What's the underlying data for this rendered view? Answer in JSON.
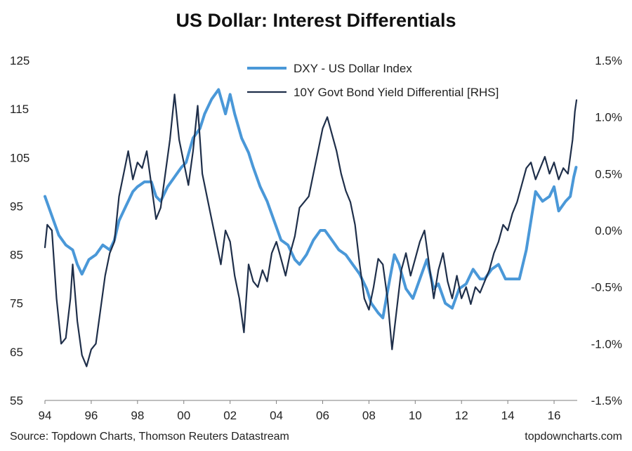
{
  "chart_data": {
    "type": "line",
    "title": "US Dollar: Interest Differentials",
    "left_axis": {
      "ylim": [
        55,
        125
      ],
      "ticks": [
        "55",
        "65",
        "75",
        "85",
        "95",
        "105",
        "115",
        "125"
      ]
    },
    "right_axis": {
      "ylim": [
        -1.5,
        1.5
      ],
      "ticks": [
        "-1.5%",
        "-1.0%",
        "-0.5%",
        "0.0%",
        "0.5%",
        "1.0%",
        "1.5%"
      ]
    },
    "x_axis": {
      "xlim": [
        1994,
        2017
      ],
      "tick_values": [
        1994,
        1996,
        1998,
        2000,
        2002,
        2004,
        2006,
        2008,
        2010,
        2012,
        2014,
        2016
      ],
      "ticks": [
        "94",
        "96",
        "98",
        "00",
        "02",
        "04",
        "06",
        "08",
        "10",
        "12",
        "14",
        "16"
      ]
    },
    "grid": false,
    "legend_position": "top-center",
    "series": [
      {
        "name": "DXY - US Dollar Index",
        "axis": "left",
        "color": "#4a98d8",
        "points": [
          [
            1994.0,
            97
          ],
          [
            1994.3,
            93
          ],
          [
            1994.6,
            89
          ],
          [
            1994.9,
            87
          ],
          [
            1995.2,
            86
          ],
          [
            1995.4,
            83
          ],
          [
            1995.6,
            81
          ],
          [
            1995.9,
            84
          ],
          [
            1996.2,
            85
          ],
          [
            1996.5,
            87
          ],
          [
            1996.8,
            86
          ],
          [
            1997.0,
            88
          ],
          [
            1997.2,
            92
          ],
          [
            1997.5,
            95
          ],
          [
            1997.8,
            98
          ],
          [
            1998.0,
            99
          ],
          [
            1998.3,
            100
          ],
          [
            1998.6,
            100
          ],
          [
            1998.8,
            97
          ],
          [
            1999.0,
            96
          ],
          [
            1999.3,
            99
          ],
          [
            1999.6,
            101
          ],
          [
            1999.9,
            103
          ],
          [
            2000.1,
            104
          ],
          [
            2000.4,
            109
          ],
          [
            2000.7,
            111
          ],
          [
            2000.9,
            114
          ],
          [
            2001.2,
            117
          ],
          [
            2001.5,
            119
          ],
          [
            2001.8,
            114
          ],
          [
            2002.0,
            118
          ],
          [
            2002.2,
            114
          ],
          [
            2002.5,
            109
          ],
          [
            2002.8,
            106
          ],
          [
            2003.0,
            103
          ],
          [
            2003.3,
            99
          ],
          [
            2003.6,
            96
          ],
          [
            2003.9,
            92
          ],
          [
            2004.2,
            88
          ],
          [
            2004.5,
            87
          ],
          [
            2004.8,
            84
          ],
          [
            2005.0,
            83
          ],
          [
            2005.3,
            85
          ],
          [
            2005.6,
            88
          ],
          [
            2005.9,
            90
          ],
          [
            2006.1,
            90
          ],
          [
            2006.4,
            88
          ],
          [
            2006.7,
            86
          ],
          [
            2007.0,
            85
          ],
          [
            2007.3,
            83
          ],
          [
            2007.6,
            81
          ],
          [
            2007.9,
            78
          ],
          [
            2008.1,
            75
          ],
          [
            2008.4,
            73
          ],
          [
            2008.6,
            72
          ],
          [
            2008.9,
            80
          ],
          [
            2009.1,
            85
          ],
          [
            2009.3,
            83
          ],
          [
            2009.6,
            78
          ],
          [
            2009.9,
            76
          ],
          [
            2010.2,
            80
          ],
          [
            2010.5,
            84
          ],
          [
            2010.8,
            78
          ],
          [
            2011.0,
            79
          ],
          [
            2011.3,
            75
          ],
          [
            2011.6,
            74
          ],
          [
            2011.9,
            78
          ],
          [
            2012.2,
            79
          ],
          [
            2012.5,
            82
          ],
          [
            2012.8,
            80
          ],
          [
            2013.0,
            80
          ],
          [
            2013.3,
            82
          ],
          [
            2013.6,
            83
          ],
          [
            2013.9,
            80
          ],
          [
            2014.2,
            80
          ],
          [
            2014.5,
            80
          ],
          [
            2014.8,
            86
          ],
          [
            2015.0,
            92
          ],
          [
            2015.2,
            98
          ],
          [
            2015.5,
            96
          ],
          [
            2015.8,
            97
          ],
          [
            2016.0,
            99
          ],
          [
            2016.2,
            94
          ],
          [
            2016.5,
            96
          ],
          [
            2016.7,
            97
          ],
          [
            2016.85,
            101
          ],
          [
            2016.95,
            103
          ]
        ]
      },
      {
        "name": "10Y Govt Bond Yield Differential [RHS]",
        "axis": "right",
        "color": "#1f2f4a",
        "points": [
          [
            1994.0,
            -0.15
          ],
          [
            1994.1,
            0.05
          ],
          [
            1994.3,
            0.0
          ],
          [
            1994.5,
            -0.6
          ],
          [
            1994.7,
            -1.0
          ],
          [
            1994.9,
            -0.95
          ],
          [
            1995.1,
            -0.6
          ],
          [
            1995.2,
            -0.3
          ],
          [
            1995.4,
            -0.8
          ],
          [
            1995.6,
            -1.1
          ],
          [
            1995.8,
            -1.2
          ],
          [
            1996.0,
            -1.05
          ],
          [
            1996.2,
            -1.0
          ],
          [
            1996.4,
            -0.7
          ],
          [
            1996.6,
            -0.4
          ],
          [
            1996.8,
            -0.2
          ],
          [
            1997.0,
            -0.1
          ],
          [
            1997.2,
            0.3
          ],
          [
            1997.4,
            0.5
          ],
          [
            1997.6,
            0.7
          ],
          [
            1997.8,
            0.45
          ],
          [
            1998.0,
            0.6
          ],
          [
            1998.2,
            0.55
          ],
          [
            1998.4,
            0.7
          ],
          [
            1998.6,
            0.4
          ],
          [
            1998.8,
            0.1
          ],
          [
            1999.0,
            0.2
          ],
          [
            1999.2,
            0.5
          ],
          [
            1999.4,
            0.8
          ],
          [
            1999.6,
            1.2
          ],
          [
            1999.8,
            0.8
          ],
          [
            2000.0,
            0.6
          ],
          [
            2000.2,
            0.4
          ],
          [
            2000.4,
            0.7
          ],
          [
            2000.6,
            1.1
          ],
          [
            2000.8,
            0.5
          ],
          [
            2001.0,
            0.3
          ],
          [
            2001.2,
            0.1
          ],
          [
            2001.4,
            -0.1
          ],
          [
            2001.6,
            -0.3
          ],
          [
            2001.8,
            0.0
          ],
          [
            2002.0,
            -0.1
          ],
          [
            2002.2,
            -0.4
          ],
          [
            2002.4,
            -0.6
          ],
          [
            2002.6,
            -0.9
          ],
          [
            2002.8,
            -0.3
          ],
          [
            2003.0,
            -0.45
          ],
          [
            2003.2,
            -0.5
          ],
          [
            2003.4,
            -0.35
          ],
          [
            2003.6,
            -0.45
          ],
          [
            2003.8,
            -0.2
          ],
          [
            2004.0,
            -0.1
          ],
          [
            2004.2,
            -0.25
          ],
          [
            2004.4,
            -0.4
          ],
          [
            2004.6,
            -0.2
          ],
          [
            2004.8,
            -0.05
          ],
          [
            2005.0,
            0.2
          ],
          [
            2005.2,
            0.25
          ],
          [
            2005.4,
            0.3
          ],
          [
            2005.6,
            0.5
          ],
          [
            2005.8,
            0.7
          ],
          [
            2006.0,
            0.9
          ],
          [
            2006.2,
            1.0
          ],
          [
            2006.4,
            0.85
          ],
          [
            2006.6,
            0.7
          ],
          [
            2006.8,
            0.5
          ],
          [
            2007.0,
            0.35
          ],
          [
            2007.2,
            0.25
          ],
          [
            2007.4,
            0.05
          ],
          [
            2007.6,
            -0.3
          ],
          [
            2007.8,
            -0.6
          ],
          [
            2008.0,
            -0.7
          ],
          [
            2008.2,
            -0.5
          ],
          [
            2008.4,
            -0.25
          ],
          [
            2008.6,
            -0.3
          ],
          [
            2008.8,
            -0.6
          ],
          [
            2009.0,
            -1.05
          ],
          [
            2009.2,
            -0.7
          ],
          [
            2009.4,
            -0.35
          ],
          [
            2009.6,
            -0.2
          ],
          [
            2009.8,
            -0.4
          ],
          [
            2010.0,
            -0.25
          ],
          [
            2010.2,
            -0.1
          ],
          [
            2010.4,
            0.0
          ],
          [
            2010.6,
            -0.3
          ],
          [
            2010.8,
            -0.6
          ],
          [
            2011.0,
            -0.35
          ],
          [
            2011.2,
            -0.2
          ],
          [
            2011.4,
            -0.45
          ],
          [
            2011.6,
            -0.6
          ],
          [
            2011.8,
            -0.4
          ],
          [
            2012.0,
            -0.6
          ],
          [
            2012.2,
            -0.5
          ],
          [
            2012.4,
            -0.65
          ],
          [
            2012.6,
            -0.5
          ],
          [
            2012.8,
            -0.55
          ],
          [
            2013.0,
            -0.45
          ],
          [
            2013.2,
            -0.35
          ],
          [
            2013.4,
            -0.2
          ],
          [
            2013.6,
            -0.1
          ],
          [
            2013.8,
            0.05
          ],
          [
            2014.0,
            0.0
          ],
          [
            2014.2,
            0.15
          ],
          [
            2014.4,
            0.25
          ],
          [
            2014.6,
            0.4
          ],
          [
            2014.8,
            0.55
          ],
          [
            2015.0,
            0.6
          ],
          [
            2015.2,
            0.45
          ],
          [
            2015.4,
            0.55
          ],
          [
            2015.6,
            0.65
          ],
          [
            2015.8,
            0.5
          ],
          [
            2016.0,
            0.6
          ],
          [
            2016.2,
            0.45
          ],
          [
            2016.4,
            0.55
          ],
          [
            2016.6,
            0.5
          ],
          [
            2016.8,
            0.8
          ],
          [
            2016.9,
            1.05
          ],
          [
            2016.97,
            1.15
          ]
        ]
      }
    ]
  },
  "footer": {
    "source": "Source: Topdown Charts, Thomson Reuters Datastream",
    "brand": "topdowncharts.com"
  }
}
